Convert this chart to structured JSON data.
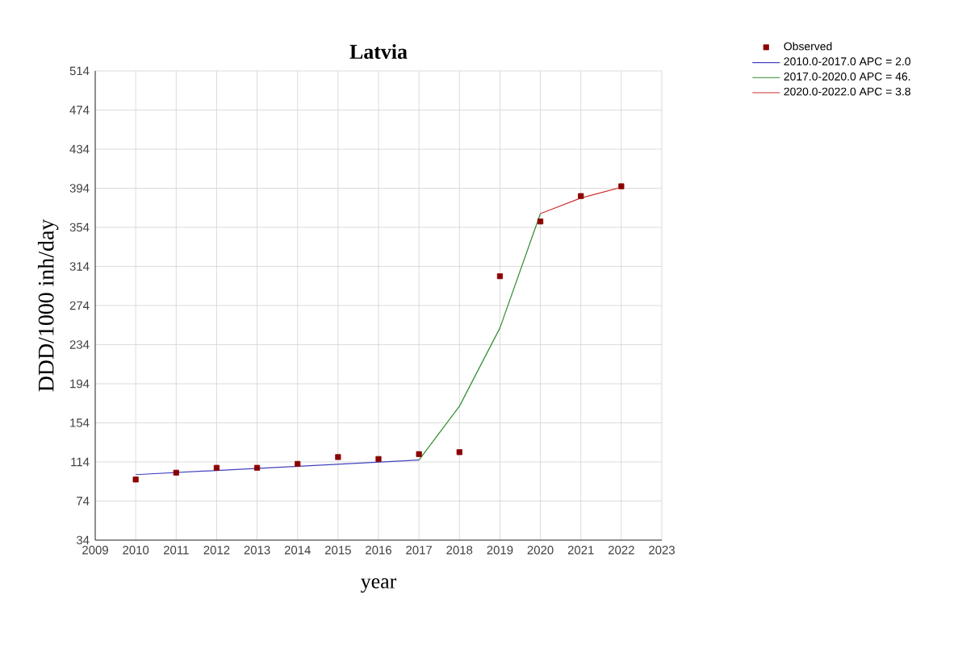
{
  "chart_data": {
    "type": "line",
    "title": "Latvia",
    "xlabel": "year",
    "ylabel": "DDD/1000 inh/day",
    "xlim": [
      2009,
      2023
    ],
    "xticks": [
      2009,
      2010,
      2011,
      2012,
      2013,
      2014,
      2015,
      2016,
      2017,
      2018,
      2019,
      2020,
      2021,
      2022,
      2023
    ],
    "ylim": [
      34,
      514
    ],
    "yticks": [
      34,
      74,
      114,
      154,
      194,
      234,
      274,
      314,
      354,
      394,
      434,
      474,
      514
    ],
    "grid": true,
    "legend": "top right",
    "series": [
      {
        "name": "Observed",
        "type": "scatter",
        "marker": "square",
        "color": "#8b0000",
        "x": [
          2010,
          2011,
          2012,
          2013,
          2014,
          2015,
          2016,
          2017,
          2018,
          2019,
          2020,
          2021,
          2022
        ],
        "values": [
          96,
          103,
          108,
          108,
          112,
          119,
          117,
          122,
          124,
          304,
          360,
          386,
          396
        ]
      },
      {
        "name": "2010.0-2017.0 APC = 2.0",
        "color": "#4040c0",
        "x": [
          2010,
          2017
        ],
        "values": [
          101,
          116
        ]
      },
      {
        "name": "2017.0-2020.0 APC = 46.",
        "color": "#2e8b2e",
        "x": [
          2017,
          2018,
          2019,
          2020
        ],
        "values": [
          116,
          171,
          251,
          368
        ]
      },
      {
        "name": "2020.0-2022.0 APC = 3.8",
        "color": "#d03030",
        "x": [
          2020,
          2021,
          2022
        ],
        "values": [
          368,
          384,
          395
        ]
      }
    ]
  }
}
